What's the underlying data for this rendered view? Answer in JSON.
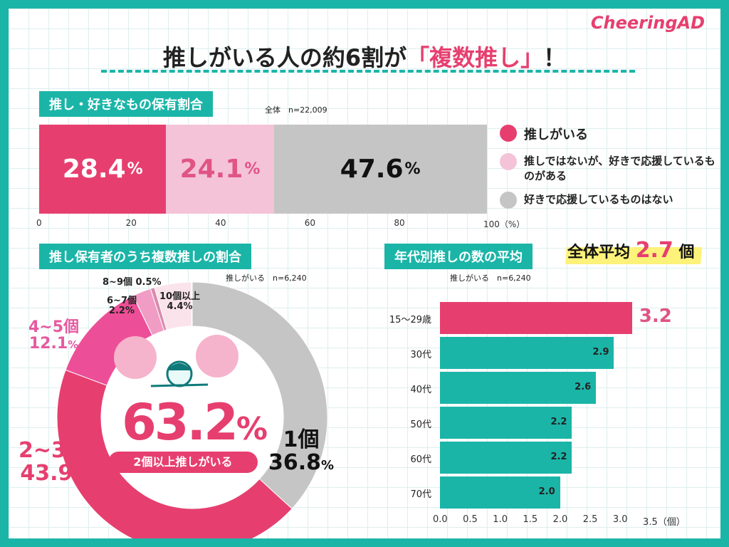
{
  "logo": "CheeringAD",
  "title": {
    "pre": "推しがいる人の約6割が",
    "highlight": "「複数推し」",
    "post": "！"
  },
  "section1": {
    "tag": "推し・好きなもの保有割合",
    "note": "全体　n=22,009"
  },
  "section2": {
    "tag": "推し保有者のうち複数推しの割合",
    "note": "推しがいる　n=6,240",
    "center_value": "63.2",
    "center_unit": "%",
    "center_label": "2個以上推しがいる"
  },
  "section3": {
    "tag": "年代別推しの数の平均",
    "note": "推しがいる　n=6,240",
    "avg_label": "全体平均",
    "avg_value": "2.7",
    "avg_unit": "個"
  },
  "colors": {
    "teal": "#1bb5a8",
    "pink": "#e63f6f",
    "light_pink": "#f4c3d8",
    "gray": "#c5c5c5",
    "yellow": "#fdf27a"
  },
  "chart_data": [
    {
      "type": "bar",
      "orientation": "horizontal-stacked",
      "categories": [
        "推しがいる",
        "推しではないが、好きで応援しているものがある",
        "好きで応援しているものはない"
      ],
      "values": [
        28.4,
        24.1,
        47.6
      ],
      "labels": [
        "28.4",
        "24.1",
        "47.6"
      ],
      "unit": "%",
      "xlim": [
        0,
        100
      ],
      "ticks": [
        "0",
        "20",
        "40",
        "60",
        "80",
        "100（%）"
      ],
      "legend": "right"
    },
    {
      "type": "pie",
      "donut": true,
      "categories": [
        "1個",
        "2~3個",
        "4~5個",
        "6~7個",
        "8~9個",
        "10個以上"
      ],
      "values": [
        36.8,
        43.9,
        12.1,
        2.2,
        0.5,
        4.4
      ],
      "labels": [
        "36.8",
        "43.9",
        "12.1",
        "2.2%",
        "0.5%",
        "4.4%"
      ],
      "colors": [
        "#c5c5c5",
        "#e63f6f",
        "#ec4f97",
        "#f19cc4",
        "#d98cb0",
        "#fbe3ec"
      ]
    },
    {
      "type": "bar",
      "orientation": "horizontal",
      "categories": [
        "15〜29歳",
        "30代",
        "40代",
        "50代",
        "60代",
        "70代"
      ],
      "values": [
        3.2,
        2.9,
        2.6,
        2.2,
        2.2,
        2.0
      ],
      "labels": [
        "3.2",
        "2.9",
        "2.6",
        "2.2",
        "2.2",
        "2.0"
      ],
      "xlim": [
        0,
        3.5
      ],
      "ticks": [
        "0.0",
        "0.5",
        "1.0",
        "1.5",
        "2.0",
        "2.5",
        "3.0",
        "3.5（個）"
      ]
    }
  ]
}
